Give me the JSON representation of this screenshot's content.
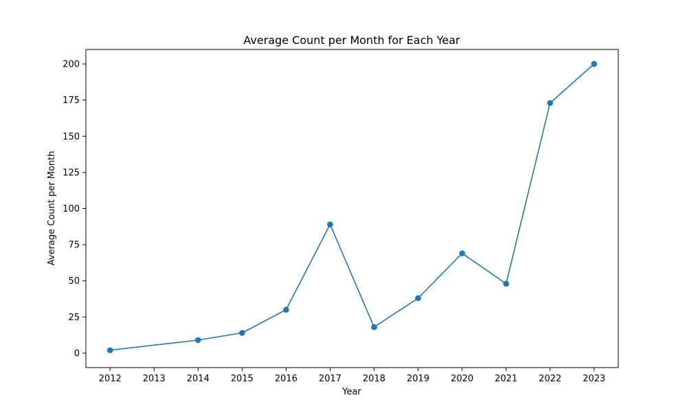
{
  "chart_data": {
    "type": "line",
    "title": "Average Count per Month for Each Year",
    "xlabel": "Year",
    "ylabel": "Average Count per Month",
    "x_ticks": [
      "2012",
      "2013",
      "2014",
      "2015",
      "2016",
      "2017",
      "2018",
      "2019",
      "2020",
      "2021",
      "2022",
      "2023"
    ],
    "y_ticks": [
      "0",
      "25",
      "50",
      "75",
      "100",
      "125",
      "150",
      "175",
      "200"
    ],
    "xlim": [
      2011.45,
      2023.55
    ],
    "ylim": [
      -10,
      210
    ],
    "grid": false,
    "series": [
      {
        "color": "#1f77b4",
        "marker": "circle",
        "x": [
          2012,
          2014,
          2015,
          2016,
          2017,
          2018,
          2019,
          2020,
          2021,
          2022,
          2023
        ],
        "y": [
          2,
          9,
          14,
          30,
          89,
          18,
          38,
          69,
          48,
          173,
          200
        ]
      }
    ]
  }
}
